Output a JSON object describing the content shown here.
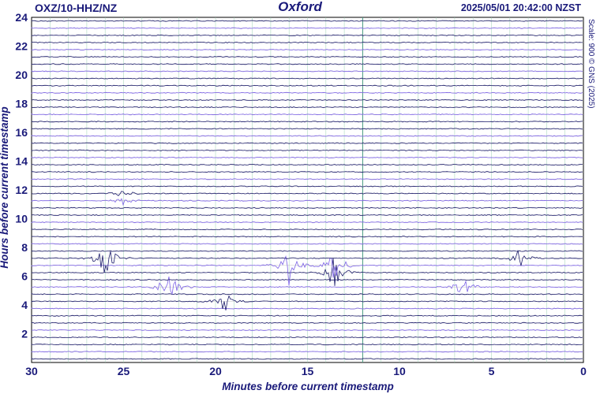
{
  "header": {
    "station": "OXZ/10-HHZ/NZ",
    "location": "Oxford",
    "timestamp": "2025/05/01 20:42:00 NZST",
    "scale_note": "Scale: 900 © GNS (2025)"
  },
  "chart_data": {
    "type": "seismogram",
    "xlabel": "Minutes before current timestamp",
    "ylabel": "Hours before current timestamp",
    "xlim": [
      30,
      0
    ],
    "ylim": [
      0,
      24
    ],
    "x_ticks": [
      30,
      25,
      20,
      15,
      10,
      5,
      0
    ],
    "y_ticks": [
      2,
      4,
      6,
      8,
      10,
      12,
      14,
      16,
      18,
      20,
      22,
      24
    ],
    "grid": true,
    "trace_count": 48,
    "trace_interval_minutes": 30,
    "colors": {
      "trace_primary": "#1c1c6b",
      "trace_secondary": "#7b61e6",
      "grid_vertical": "#9ad0b4",
      "grid_horizontal": "#b0b0b0",
      "marker_line": "#4a9a82",
      "text": "#1a1a7a"
    },
    "events": [
      {
        "hour": 5.2,
        "minute": 22.5,
        "amplitude": "large"
      },
      {
        "hour": 6.5,
        "minute": 13.5,
        "amplitude": "large"
      },
      {
        "hour": 6.8,
        "minute": 16.0,
        "amplitude": "large"
      },
      {
        "hour": 7.3,
        "minute": 26.0,
        "amplitude": "large"
      },
      {
        "hour": 7.3,
        "minute": 3.5,
        "amplitude": "medium"
      },
      {
        "hour": 5.3,
        "minute": 6.5,
        "amplitude": "medium"
      },
      {
        "hour": 11.5,
        "minute": 25.0,
        "amplitude": "small"
      },
      {
        "hour": 4.3,
        "minute": 19.5,
        "amplitude": "medium"
      }
    ]
  }
}
